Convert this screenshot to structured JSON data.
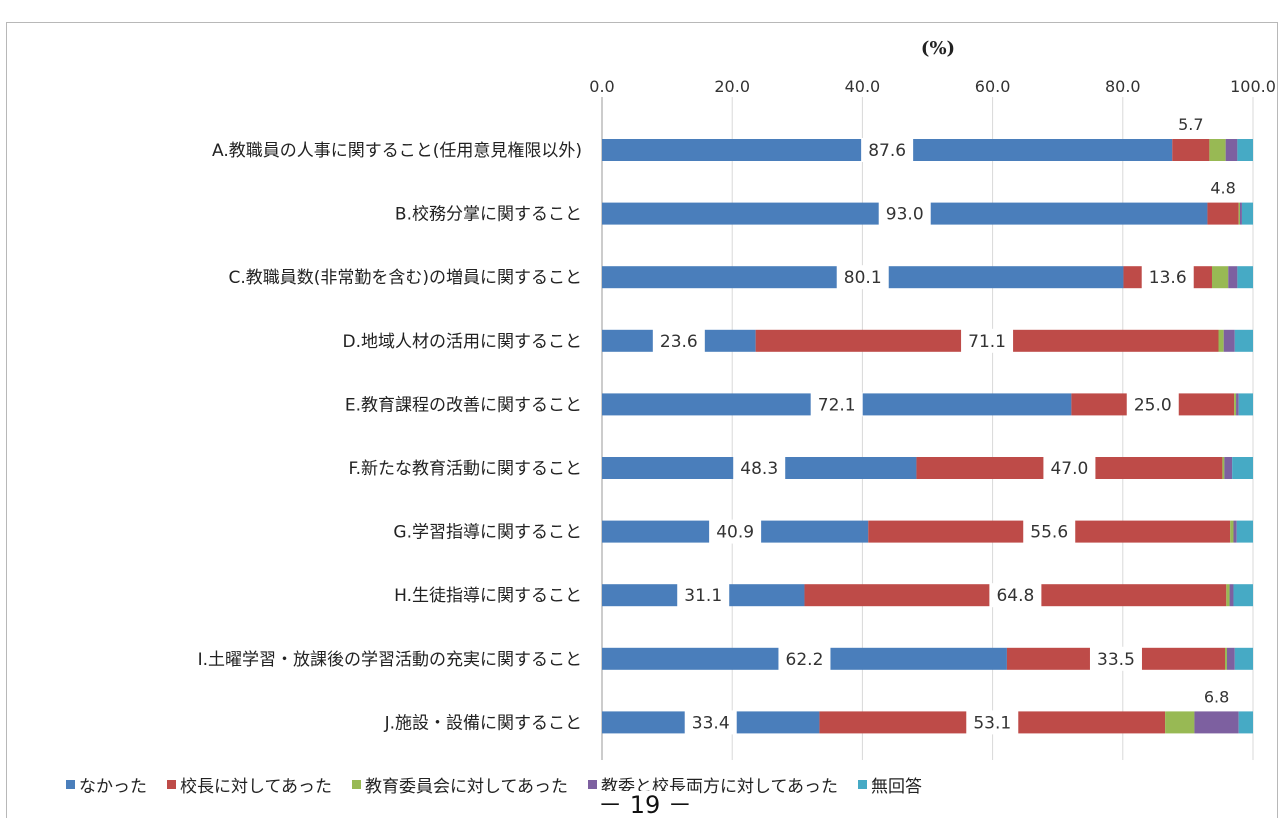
{
  "page_number": "－ 19 －",
  "legend_items": [
    {
      "label": "なかった",
      "color": "#4a7ebb"
    },
    {
      "label": "校長に対してあった",
      "color": "#be4b48"
    },
    {
      "label": "教育委員会に対してあった",
      "color": "#98b954"
    },
    {
      "label": "教委と校長両方に対してあった",
      "color": "#7d60a0"
    },
    {
      "label": "無回答",
      "color": "#46aac5"
    }
  ],
  "chart_data": {
    "type": "bar",
    "orientation": "horizontal",
    "stacked": true,
    "unit_label": "(%)",
    "xlim": [
      0,
      100
    ],
    "x_ticks": [
      "0.0",
      "20.0",
      "40.0",
      "60.0",
      "80.0",
      "100.0"
    ],
    "grid": true,
    "legend_position": "bottom",
    "categories": [
      "A.教職員の人事に関すること(任用意見権限以外)",
      "B.校務分掌に関すること",
      "C.教職員数(非常勤を含む)の増員に関すること",
      "D.地域人材の活用に関すること",
      "E.教育課程の改善に関すること",
      "F.新たな教育活動に関すること",
      "G.学習指導に関すること",
      "H.生徒指導に関すること",
      "I.土曜学習・放課後の学習活動の充実に関すること",
      "J.施設・設備に関すること"
    ],
    "series": [
      {
        "name": "なかった",
        "color": "#4a7ebb",
        "values": [
          87.6,
          93.0,
          80.1,
          23.6,
          72.1,
          48.3,
          40.9,
          31.1,
          62.2,
          33.4
        ]
      },
      {
        "name": "校長に対してあった",
        "color": "#be4b48",
        "values": [
          5.7,
          4.8,
          13.6,
          71.1,
          25.0,
          47.0,
          55.6,
          64.8,
          33.5,
          53.1
        ]
      },
      {
        "name": "教育委員会に対してあった",
        "color": "#98b954",
        "values": [
          2.5,
          0.2,
          2.5,
          0.8,
          0.3,
          0.3,
          0.5,
          0.5,
          0.3,
          4.5
        ]
      },
      {
        "name": "教委と校長両方に対してあった",
        "color": "#7d60a0",
        "values": [
          1.8,
          0.3,
          1.4,
          1.7,
          0.4,
          1.2,
          0.5,
          0.6,
          1.2,
          6.8
        ]
      },
      {
        "name": "無回答",
        "color": "#46aac5",
        "values": [
          2.4,
          1.7,
          2.4,
          2.8,
          2.2,
          3.2,
          2.5,
          3.0,
          2.8,
          2.2
        ]
      }
    ],
    "data_labels": [
      {
        "category_index": 0,
        "series_index": 0,
        "text": "87.6"
      },
      {
        "category_index": 0,
        "series_index": 1,
        "text": "5.7"
      },
      {
        "category_index": 1,
        "series_index": 0,
        "text": "93.0"
      },
      {
        "category_index": 1,
        "series_index": 1,
        "text": "4.8"
      },
      {
        "category_index": 2,
        "series_index": 0,
        "text": "80.1"
      },
      {
        "category_index": 2,
        "series_index": 1,
        "text": "13.6"
      },
      {
        "category_index": 3,
        "series_index": 0,
        "text": "23.6"
      },
      {
        "category_index": 3,
        "series_index": 1,
        "text": "71.1"
      },
      {
        "category_index": 4,
        "series_index": 0,
        "text": "72.1"
      },
      {
        "category_index": 4,
        "series_index": 1,
        "text": "25.0"
      },
      {
        "category_index": 5,
        "series_index": 0,
        "text": "48.3"
      },
      {
        "category_index": 5,
        "series_index": 1,
        "text": "47.0"
      },
      {
        "category_index": 6,
        "series_index": 0,
        "text": "40.9"
      },
      {
        "category_index": 6,
        "series_index": 1,
        "text": "55.6"
      },
      {
        "category_index": 7,
        "series_index": 0,
        "text": "31.1"
      },
      {
        "category_index": 7,
        "series_index": 1,
        "text": "64.8"
      },
      {
        "category_index": 8,
        "series_index": 0,
        "text": "62.2"
      },
      {
        "category_index": 8,
        "series_index": 1,
        "text": "33.5"
      },
      {
        "category_index": 9,
        "series_index": 0,
        "text": "33.4"
      },
      {
        "category_index": 9,
        "series_index": 1,
        "text": "53.1"
      },
      {
        "category_index": 9,
        "series_index": 3,
        "text": "6.8"
      }
    ]
  }
}
